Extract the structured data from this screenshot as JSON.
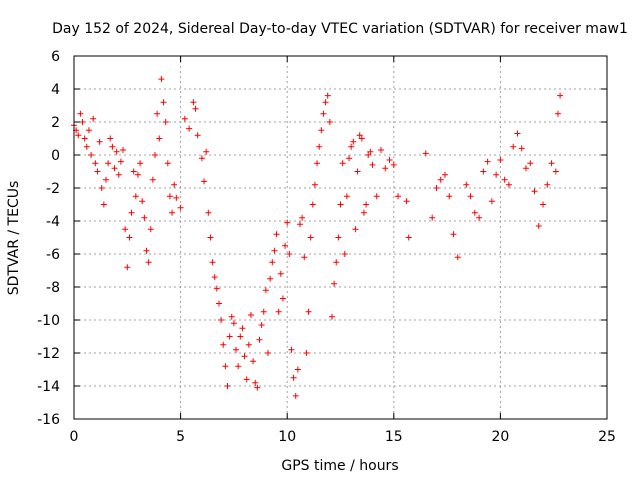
{
  "chart_data": {
    "type": "scatter",
    "title": "Day 152 of 2024, Sidereal Day-to-day VTEC variation (SDTVAR) for receiver maw1",
    "xlabel": "GPS time / hours",
    "ylabel": "SDTVAR / TECUs",
    "xlim": [
      0,
      25
    ],
    "ylim": [
      -16,
      6
    ],
    "xticks": [
      0,
      5,
      10,
      15,
      20,
      25
    ],
    "yticks": [
      -16,
      -14,
      -12,
      -10,
      -8,
      -6,
      -4,
      -2,
      0,
      2,
      4,
      6
    ],
    "grid": true,
    "marker": "+",
    "marker_color": "#ff0000",
    "series": [
      {
        "name": "SDTVAR",
        "points": [
          [
            0.0,
            1.8
          ],
          [
            0.1,
            1.5
          ],
          [
            0.2,
            1.2
          ],
          [
            0.3,
            2.5
          ],
          [
            0.4,
            2.0
          ],
          [
            0.5,
            1.0
          ],
          [
            0.6,
            0.5
          ],
          [
            0.7,
            1.5
          ],
          [
            0.8,
            0.0
          ],
          [
            0.9,
            2.2
          ],
          [
            1.0,
            -0.5
          ],
          [
            1.1,
            -1.0
          ],
          [
            1.2,
            0.8
          ],
          [
            1.3,
            -2.0
          ],
          [
            1.4,
            -3.0
          ],
          [
            1.5,
            -1.5
          ],
          [
            1.6,
            -0.5
          ],
          [
            1.7,
            1.0
          ],
          [
            1.8,
            0.5
          ],
          [
            1.9,
            -0.8
          ],
          [
            2.0,
            0.2
          ],
          [
            2.1,
            -1.2
          ],
          [
            2.2,
            -0.4
          ],
          [
            2.3,
            0.3
          ],
          [
            2.4,
            -4.5
          ],
          [
            2.5,
            -6.8
          ],
          [
            2.6,
            -5.0
          ],
          [
            2.7,
            -3.5
          ],
          [
            2.8,
            -1.0
          ],
          [
            2.9,
            -2.5
          ],
          [
            3.0,
            -1.2
          ],
          [
            3.1,
            -0.5
          ],
          [
            3.2,
            -2.8
          ],
          [
            3.3,
            -3.8
          ],
          [
            3.4,
            -5.8
          ],
          [
            3.5,
            -6.5
          ],
          [
            3.6,
            -4.5
          ],
          [
            3.7,
            -1.5
          ],
          [
            3.8,
            0.0
          ],
          [
            3.9,
            2.5
          ],
          [
            4.0,
            1.0
          ],
          [
            4.1,
            4.6
          ],
          [
            4.2,
            3.2
          ],
          [
            4.3,
            2.0
          ],
          [
            4.4,
            -0.5
          ],
          [
            4.5,
            -2.5
          ],
          [
            4.6,
            -3.5
          ],
          [
            4.7,
            -1.8
          ],
          [
            4.8,
            -2.6
          ],
          [
            5.0,
            -3.2
          ],
          [
            5.2,
            2.2
          ],
          [
            5.4,
            1.6
          ],
          [
            5.6,
            3.2
          ],
          [
            5.7,
            2.8
          ],
          [
            5.8,
            1.2
          ],
          [
            6.0,
            -0.2
          ],
          [
            6.1,
            -1.6
          ],
          [
            6.2,
            0.2
          ],
          [
            6.3,
            -3.5
          ],
          [
            6.4,
            -5.0
          ],
          [
            6.5,
            -6.5
          ],
          [
            6.6,
            -7.4
          ],
          [
            6.7,
            -8.1
          ],
          [
            6.8,
            -9.0
          ],
          [
            6.9,
            -10.0
          ],
          [
            7.0,
            -11.5
          ],
          [
            7.1,
            -12.8
          ],
          [
            7.2,
            -14.0
          ],
          [
            7.3,
            -11.0
          ],
          [
            7.4,
            -9.8
          ],
          [
            7.5,
            -10.2
          ],
          [
            7.6,
            -11.8
          ],
          [
            7.7,
            -12.8
          ],
          [
            7.8,
            -11.0
          ],
          [
            7.9,
            -10.5
          ],
          [
            8.0,
            -12.2
          ],
          [
            8.1,
            -13.6
          ],
          [
            8.2,
            -11.5
          ],
          [
            8.3,
            -9.7
          ],
          [
            8.4,
            -12.5
          ],
          [
            8.5,
            -13.8
          ],
          [
            8.6,
            -14.1
          ],
          [
            8.7,
            -11.2
          ],
          [
            8.8,
            -10.3
          ],
          [
            8.9,
            -9.5
          ],
          [
            9.0,
            -8.2
          ],
          [
            9.1,
            -12.0
          ],
          [
            9.2,
            -7.5
          ],
          [
            9.3,
            -6.5
          ],
          [
            9.4,
            -5.8
          ],
          [
            9.5,
            -4.8
          ],
          [
            9.6,
            -9.5
          ],
          [
            9.7,
            -7.2
          ],
          [
            9.8,
            -8.7
          ],
          [
            9.9,
            -5.5
          ],
          [
            10.0,
            -4.1
          ],
          [
            10.1,
            -6.0
          ],
          [
            10.2,
            -11.8
          ],
          [
            10.3,
            -13.5
          ],
          [
            10.4,
            -14.6
          ],
          [
            10.5,
            -13.0
          ],
          [
            10.6,
            -4.2
          ],
          [
            10.7,
            -3.8
          ],
          [
            10.8,
            -6.2
          ],
          [
            10.9,
            -12.0
          ],
          [
            11.0,
            -9.5
          ],
          [
            11.1,
            -5.0
          ],
          [
            11.2,
            -3.0
          ],
          [
            11.3,
            -1.8
          ],
          [
            11.4,
            -0.5
          ],
          [
            11.5,
            0.5
          ],
          [
            11.6,
            1.5
          ],
          [
            11.7,
            2.5
          ],
          [
            11.8,
            3.2
          ],
          [
            11.9,
            3.6
          ],
          [
            12.0,
            2.0
          ],
          [
            12.1,
            -9.8
          ],
          [
            12.2,
            -7.8
          ],
          [
            12.3,
            -6.5
          ],
          [
            12.4,
            -5.0
          ],
          [
            12.5,
            -3.0
          ],
          [
            12.6,
            -0.5
          ],
          [
            12.7,
            -6.0
          ],
          [
            12.8,
            -2.5
          ],
          [
            12.9,
            -0.2
          ],
          [
            13.0,
            0.5
          ],
          [
            13.1,
            0.8
          ],
          [
            13.2,
            -4.5
          ],
          [
            13.3,
            -1.0
          ],
          [
            13.4,
            1.2
          ],
          [
            13.5,
            1.0
          ],
          [
            13.6,
            -3.5
          ],
          [
            13.7,
            -3.0
          ],
          [
            13.8,
            0.0
          ],
          [
            13.9,
            0.2
          ],
          [
            14.0,
            -0.6
          ],
          [
            14.2,
            -2.5
          ],
          [
            14.4,
            0.3
          ],
          [
            14.6,
            -0.8
          ],
          [
            14.8,
            -0.3
          ],
          [
            15.0,
            -0.6
          ],
          [
            15.2,
            -2.5
          ],
          [
            15.6,
            -2.8
          ],
          [
            15.7,
            -5.0
          ],
          [
            16.5,
            0.1
          ],
          [
            16.8,
            -3.8
          ],
          [
            17.0,
            -2.0
          ],
          [
            17.2,
            -1.5
          ],
          [
            17.4,
            -1.2
          ],
          [
            17.6,
            -2.5
          ],
          [
            17.8,
            -4.8
          ],
          [
            18.0,
            -6.2
          ],
          [
            18.4,
            -1.8
          ],
          [
            18.6,
            -2.5
          ],
          [
            18.8,
            -3.5
          ],
          [
            19.0,
            -3.8
          ],
          [
            19.2,
            -1.0
          ],
          [
            19.4,
            -0.4
          ],
          [
            19.6,
            -2.8
          ],
          [
            19.8,
            -1.2
          ],
          [
            20.0,
            -0.3
          ],
          [
            20.2,
            -1.5
          ],
          [
            20.4,
            -1.8
          ],
          [
            20.6,
            0.5
          ],
          [
            20.8,
            1.3
          ],
          [
            21.0,
            0.4
          ],
          [
            21.2,
            -0.8
          ],
          [
            21.4,
            -0.5
          ],
          [
            21.6,
            -2.2
          ],
          [
            21.8,
            -4.3
          ],
          [
            22.0,
            -3.0
          ],
          [
            22.2,
            -1.8
          ],
          [
            22.4,
            -0.5
          ],
          [
            22.6,
            -1.0
          ],
          [
            22.7,
            2.5
          ],
          [
            22.8,
            3.6
          ]
        ]
      }
    ]
  }
}
